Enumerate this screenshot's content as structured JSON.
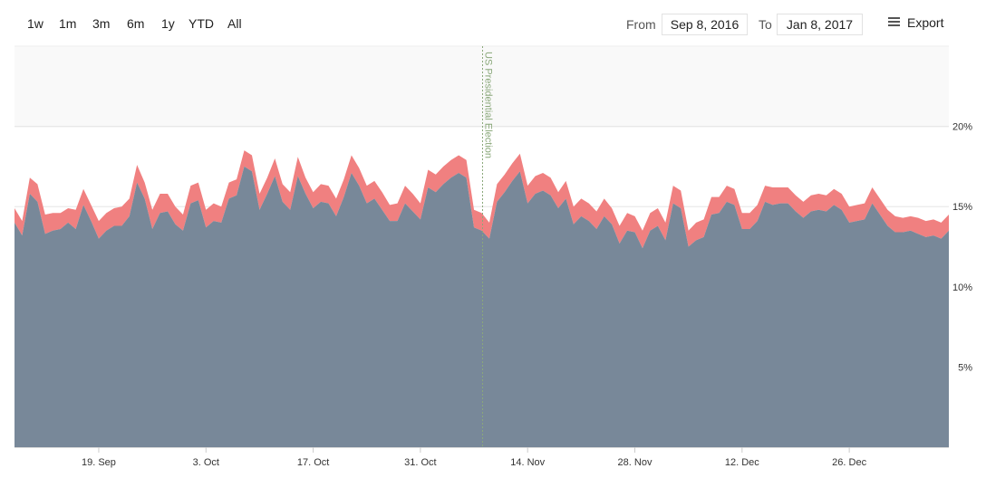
{
  "range_buttons": [
    "1w",
    "1m",
    "3m",
    "6m",
    "1y",
    "YTD",
    "All"
  ],
  "date_range": {
    "from_label": "From",
    "from_value": "Sep 8, 2016",
    "to_label": "To",
    "to_value": "Jan 8, 2017"
  },
  "export_label": "Export",
  "chart_data": {
    "type": "area",
    "stacked": true,
    "title": "",
    "xlabel": "",
    "ylabel": "",
    "x_tick_labels": [
      "19. Sep",
      "3. Oct",
      "17. Oct",
      "31. Oct",
      "14. Nov",
      "28. Nov",
      "12. Dec",
      "26. Dec"
    ],
    "y_tick_labels": [
      "5%",
      "10%",
      "15%",
      "20%"
    ],
    "ylim": [
      0,
      25
    ],
    "x": [
      "2016-09-08",
      "2016-09-09",
      "2016-09-10",
      "2016-09-11",
      "2016-09-12",
      "2016-09-13",
      "2016-09-14",
      "2016-09-15",
      "2016-09-16",
      "2016-09-17",
      "2016-09-18",
      "2016-09-19",
      "2016-09-20",
      "2016-09-21",
      "2016-09-22",
      "2016-09-23",
      "2016-09-24",
      "2016-09-25",
      "2016-09-26",
      "2016-09-27",
      "2016-09-28",
      "2016-09-29",
      "2016-09-30",
      "2016-10-01",
      "2016-10-02",
      "2016-10-03",
      "2016-10-04",
      "2016-10-05",
      "2016-10-06",
      "2016-10-07",
      "2016-10-08",
      "2016-10-09",
      "2016-10-10",
      "2016-10-11",
      "2016-10-12",
      "2016-10-13",
      "2016-10-14",
      "2016-10-15",
      "2016-10-16",
      "2016-10-17",
      "2016-10-18",
      "2016-10-19",
      "2016-10-20",
      "2016-10-21",
      "2016-10-22",
      "2016-10-23",
      "2016-10-24",
      "2016-10-25",
      "2016-10-26",
      "2016-10-27",
      "2016-10-28",
      "2016-10-29",
      "2016-10-30",
      "2016-10-31",
      "2016-11-01",
      "2016-11-02",
      "2016-11-03",
      "2016-11-04",
      "2016-11-05",
      "2016-11-06",
      "2016-11-07",
      "2016-11-08",
      "2016-11-09",
      "2016-11-10",
      "2016-11-11",
      "2016-11-12",
      "2016-11-13",
      "2016-11-14",
      "2016-11-15",
      "2016-11-16",
      "2016-11-17",
      "2016-11-18",
      "2016-11-19",
      "2016-11-20",
      "2016-11-21",
      "2016-11-22",
      "2016-11-23",
      "2016-11-24",
      "2016-11-25",
      "2016-11-26",
      "2016-11-27",
      "2016-11-28",
      "2016-11-29",
      "2016-11-30",
      "2016-12-01",
      "2016-12-02",
      "2016-12-03",
      "2016-12-04",
      "2016-12-05",
      "2016-12-06",
      "2016-12-07",
      "2016-12-08",
      "2016-12-09",
      "2016-12-10",
      "2016-12-11",
      "2016-12-12",
      "2016-12-13",
      "2016-12-14",
      "2016-12-15",
      "2016-12-16",
      "2016-12-17",
      "2016-12-18",
      "2016-12-19",
      "2016-12-20",
      "2016-12-21",
      "2016-12-22",
      "2016-12-23",
      "2016-12-24",
      "2016-12-25",
      "2016-12-26",
      "2016-12-27",
      "2016-12-28",
      "2016-12-29",
      "2016-12-30",
      "2016-12-31",
      "2017-01-01",
      "2017-01-02",
      "2017-01-03",
      "2017-01-04",
      "2017-01-05",
      "2017-01-06",
      "2017-01-07",
      "2017-01-08"
    ],
    "series": [
      {
        "color": "#788899",
        "values": [
          14.0,
          13.2,
          15.8,
          15.3,
          13.3,
          13.5,
          13.6,
          14.0,
          13.6,
          15.1,
          14.1,
          13.0,
          13.5,
          13.8,
          13.8,
          14.4,
          16.5,
          15.5,
          13.6,
          14.6,
          14.7,
          13.9,
          13.5,
          15.2,
          15.4,
          13.7,
          14.1,
          14.0,
          15.5,
          15.7,
          17.5,
          17.2,
          14.8,
          15.8,
          16.9,
          15.3,
          14.8,
          16.9,
          15.8,
          14.9,
          15.3,
          15.2,
          14.4,
          15.6,
          17.1,
          16.3,
          15.2,
          15.5,
          14.8,
          14.1,
          14.1,
          15.2,
          14.7,
          14.2,
          16.2,
          15.9,
          16.4,
          16.8,
          17.1,
          16.8,
          13.7,
          13.5,
          13.0,
          15.3,
          15.9,
          16.6,
          17.2,
          15.2,
          15.8,
          16.0,
          15.7,
          14.9,
          15.5,
          13.9,
          14.4,
          14.1,
          13.6,
          14.4,
          13.9,
          12.7,
          13.5,
          13.4,
          12.4,
          13.5,
          13.8,
          12.9,
          15.2,
          14.9,
          12.5,
          12.9,
          13.1,
          14.5,
          14.6,
          15.3,
          15.1,
          13.6,
          13.6,
          14.1,
          15.3,
          15.1,
          15.2,
          15.2,
          14.7,
          14.3,
          14.7,
          14.8,
          14.7,
          15.1,
          14.8,
          14.0,
          14.1,
          14.2,
          15.2,
          14.5,
          13.8,
          13.4,
          13.4,
          13.5,
          13.3,
          13.1,
          13.2,
          13.0,
          13.5
        ]
      },
      {
        "color": "#f08080",
        "values": [
          0.9,
          0.9,
          1.0,
          1.1,
          1.2,
          1.1,
          1.0,
          0.9,
          1.2,
          1.0,
          1.0,
          1.1,
          1.1,
          1.1,
          1.2,
          1.1,
          1.1,
          1.0,
          1.2,
          1.2,
          1.1,
          1.1,
          1.0,
          1.1,
          1.1,
          1.1,
          1.1,
          1.0,
          1.0,
          1.0,
          1.0,
          1.0,
          1.0,
          1.0,
          1.1,
          1.1,
          1.1,
          1.2,
          1.0,
          1.0,
          1.1,
          1.1,
          1.1,
          1.1,
          1.1,
          1.1,
          1.1,
          1.1,
          1.1,
          1.0,
          1.1,
          1.1,
          1.1,
          1.0,
          1.1,
          1.1,
          1.1,
          1.1,
          1.1,
          1.1,
          1.1,
          1.1,
          1.0,
          1.1,
          1.1,
          1.1,
          1.1,
          1.1,
          1.1,
          1.1,
          1.1,
          1.0,
          1.1,
          1.1,
          1.1,
          1.1,
          1.1,
          1.1,
          1.0,
          1.1,
          1.1,
          1.0,
          1.1,
          1.1,
          1.1,
          1.1,
          1.1,
          1.1,
          1.0,
          1.1,
          1.1,
          1.1,
          1.0,
          1.0,
          1.0,
          1.0,
          1.0,
          1.0,
          1.0,
          1.1,
          1.0,
          1.0,
          1.0,
          1.0,
          1.0,
          1.0,
          1.0,
          1.0,
          1.0,
          1.0,
          1.0,
          1.0,
          1.0,
          1.0,
          1.0,
          1.0,
          0.9,
          0.9,
          1.0,
          1.0,
          1.0,
          1.0,
          1.0
        ]
      }
    ],
    "annotations": [
      {
        "x": "2016-11-08",
        "text": "US Presidential Election"
      }
    ],
    "grid": true,
    "legend": "none"
  }
}
